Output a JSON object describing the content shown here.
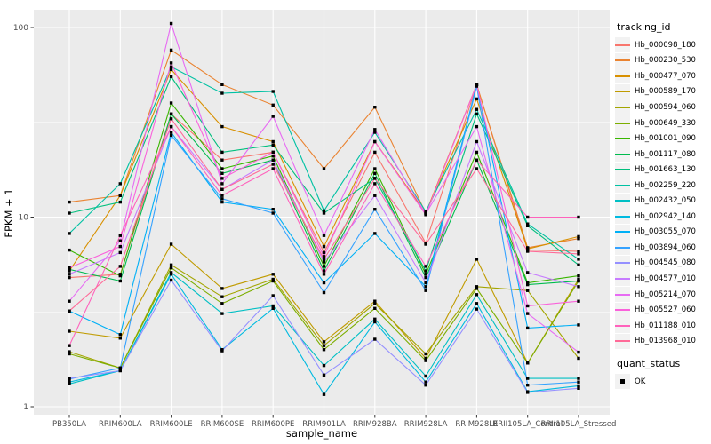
{
  "figure": {
    "background": "#FFFFFF",
    "panel_background": "#EBEBEB",
    "gridline_color": "#FFFFFF",
    "axis_text_color": "#4D4D4D",
    "tick_mark_color": "#333333",
    "point_color": "#000000"
  },
  "axes": {
    "x_title": "sample_name",
    "y_title": "FPKM + 1",
    "y_tick_labels": [
      "1",
      "10",
      "100"
    ]
  },
  "legend": {
    "tracking_title": "tracking_id",
    "quant_title": "quant_status",
    "quant_ok_label": "OK"
  },
  "chart_data": {
    "type": "line",
    "title": "",
    "xlabel": "sample_name",
    "ylabel": "FPKM + 1",
    "y_scale": "log10",
    "ylim": [
      0.9,
      125
    ],
    "y_ticks": [
      1,
      10,
      100
    ],
    "y_minor_ticks": [
      3.1623,
      31.6228
    ],
    "grid": true,
    "legend_position": "right",
    "point_shape": "filled-square",
    "point_color": "#000000",
    "categories": [
      "PB350LA",
      "RRIM600LA",
      "RRIM600LE",
      "RRIM600SE",
      "RRIM600PE",
      "RRIM901LA",
      "RRIM928BA",
      "RRIM928LA",
      "RRIM928LE",
      "RRII105LA_Control",
      "RRII105LA_Stressed"
    ],
    "series": [
      {
        "name": "Hb_000098_180",
        "color": "#F8766D",
        "values": [
          4.8,
          5.0,
          35,
          20,
          22,
          6.5,
          22,
          7.3,
          50,
          6.7,
          6.6
        ]
      },
      {
        "name": "Hb_000230_530",
        "color": "#EA8331",
        "values": [
          12,
          13,
          76,
          50,
          39,
          18,
          38,
          10.5,
          50,
          6.9,
          7.7
        ]
      },
      {
        "name": "Hb_000477_070",
        "color": "#D89000",
        "values": [
          5.2,
          13,
          60,
          30,
          25,
          7.0,
          25,
          10.5,
          42,
          6.8,
          7.9
        ]
      },
      {
        "name": "Hb_000589_170",
        "color": "#C09B00",
        "values": [
          2.5,
          2.3,
          7.2,
          4.2,
          5.0,
          2.2,
          3.6,
          1.8,
          6.0,
          1.7,
          4.7
        ]
      },
      {
        "name": "Hb_000594_060",
        "color": "#A3A500",
        "values": [
          1.95,
          1.6,
          5.6,
          3.8,
          4.7,
          2.1,
          3.5,
          1.9,
          4.3,
          4.1,
          1.8
        ]
      },
      {
        "name": "Hb_000649_330",
        "color": "#7CAE00",
        "values": [
          1.9,
          1.6,
          5.4,
          3.5,
          4.6,
          2.0,
          3.3,
          1.75,
          4.2,
          1.7,
          4.6
        ]
      },
      {
        "name": "Hb_001001_090",
        "color": "#39B600",
        "values": [
          6.7,
          4.9,
          40,
          18,
          21,
          5.5,
          18,
          5.0,
          22,
          4.5,
          4.9
        ]
      },
      {
        "name": "Hb_001117_080",
        "color": "#00BB4E",
        "values": [
          5.3,
          4.6,
          35,
          17,
          20,
          5.2,
          17,
          4.8,
          20,
          4.4,
          4.6
        ]
      },
      {
        "name": "Hb_001663_130",
        "color": "#00BF7D",
        "values": [
          10.5,
          12,
          55,
          22,
          24,
          10.5,
          16,
          5.2,
          35,
          9.0,
          5.6
        ]
      },
      {
        "name": "Hb_002259_220",
        "color": "#00C1A3",
        "values": [
          8.2,
          15,
          62,
          45,
          46,
          10.8,
          28,
          10.7,
          37,
          9.2,
          6.0
        ]
      },
      {
        "name": "Hb_002432_050",
        "color": "#00BFC4",
        "values": [
          1.32,
          1.55,
          5.1,
          3.1,
          3.4,
          1.65,
          2.9,
          1.45,
          3.9,
          1.41,
          1.41
        ]
      },
      {
        "name": "Hb_002942_140",
        "color": "#00BAE0",
        "values": [
          1.35,
          1.55,
          5.0,
          2.0,
          3.3,
          1.16,
          2.8,
          1.35,
          3.5,
          1.2,
          1.29
        ]
      },
      {
        "name": "Hb_003055_070",
        "color": "#00B0F6",
        "values": [
          3.2,
          2.4,
          28,
          12,
          11,
          4.5,
          8.2,
          4.3,
          50,
          2.6,
          2.7
        ]
      },
      {
        "name": "Hb_003894_060",
        "color": "#35A2FF",
        "values": [
          1.4,
          1.6,
          27,
          12.5,
          10.5,
          4.0,
          11,
          4.1,
          49,
          1.3,
          1.35
        ]
      },
      {
        "name": "Hb_004545_080",
        "color": "#9590FF",
        "values": [
          1.41,
          1.55,
          4.65,
          1.97,
          3.85,
          1.47,
          2.27,
          1.3,
          3.27,
          1.19,
          1.25
        ]
      },
      {
        "name": "Hb_004577_010",
        "color": "#C77CFF",
        "values": [
          5.0,
          6.5,
          30,
          14,
          20,
          5.8,
          13,
          4.5,
          25,
          5.1,
          4.3
        ]
      },
      {
        "name": "Hb_005214_070",
        "color": "#E76BF3",
        "values": [
          3.6,
          7.5,
          105,
          15,
          34,
          8.0,
          29,
          10.4,
          30,
          3.1,
          1.94
        ]
      },
      {
        "name": "Hb_005527_060",
        "color": "#FA62DB",
        "values": [
          5.4,
          7.0,
          65,
          16,
          22,
          6.2,
          25,
          10.3,
          50,
          3.4,
          3.6
        ]
      },
      {
        "name": "Hb_011188_010",
        "color": "#FF62BC",
        "values": [
          2.1,
          8.0,
          30,
          13,
          18,
          5.0,
          15,
          5.5,
          20,
          10.0,
          10.0
        ]
      },
      {
        "name": "Hb_013968_010",
        "color": "#FF6A98",
        "values": [
          3.2,
          5.5,
          33,
          14,
          19,
          6.0,
          16,
          7.2,
          18,
          6.6,
          6.4
        ]
      }
    ]
  }
}
